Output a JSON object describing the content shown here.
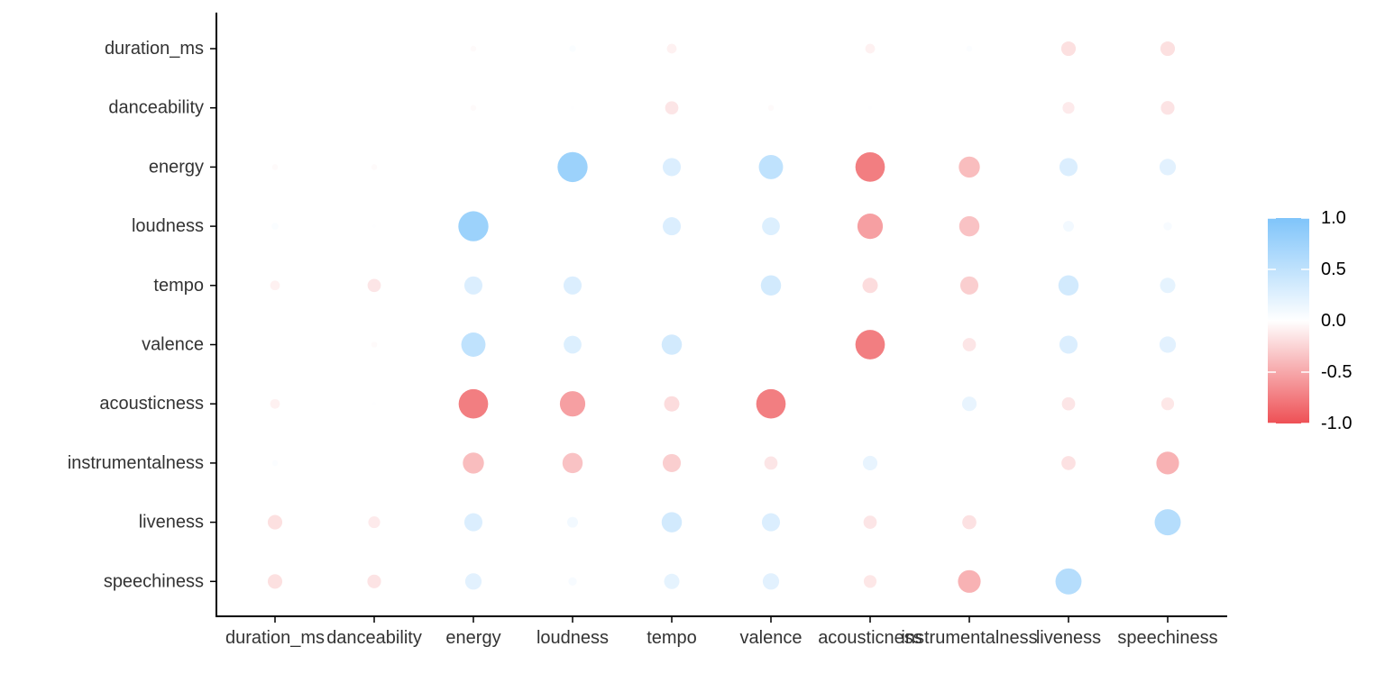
{
  "chart_data": {
    "type": "correlation-dot-matrix",
    "x_categories": [
      "duration_ms",
      "danceability",
      "energy",
      "loudness",
      "tempo",
      "valence",
      "acousticness",
      "instrumentalness",
      "liveness",
      "speechiness"
    ],
    "y_categories": [
      "duration_ms",
      "danceability",
      "energy",
      "loudness",
      "tempo",
      "valence",
      "acousticness",
      "instrumentalness",
      "liveness",
      "speechiness"
    ],
    "values": [
      [
        null,
        0.0,
        -0.03,
        0.04,
        -0.08,
        0.0,
        -0.08,
        0.03,
        -0.18,
        -0.18
      ],
      [
        0.0,
        null,
        -0.03,
        0.01,
        -0.15,
        -0.03,
        0.01,
        0.0,
        -0.12,
        -0.16
      ],
      [
        -0.03,
        -0.03,
        null,
        0.77,
        0.28,
        0.5,
        -0.74,
        -0.38,
        0.28,
        0.23
      ],
      [
        0.04,
        0.01,
        0.77,
        null,
        0.28,
        0.27,
        -0.55,
        -0.35,
        0.1,
        0.06
      ],
      [
        -0.08,
        -0.15,
        0.28,
        0.28,
        null,
        0.35,
        -0.2,
        -0.28,
        0.35,
        0.2
      ],
      [
        0.0,
        -0.03,
        0.5,
        0.27,
        0.35,
        null,
        -0.74,
        -0.15,
        0.28,
        0.23
      ],
      [
        -0.08,
        0.01,
        -0.74,
        -0.55,
        -0.2,
        -0.74,
        null,
        0.18,
        -0.15,
        -0.14
      ],
      [
        0.03,
        0.0,
        -0.38,
        -0.35,
        -0.28,
        -0.15,
        0.18,
        null,
        -0.17,
        -0.44
      ],
      [
        -0.18,
        -0.12,
        0.28,
        0.1,
        0.35,
        0.28,
        -0.15,
        -0.17,
        null,
        0.58
      ],
      [
        -0.18,
        -0.16,
        0.23,
        0.06,
        0.2,
        0.23,
        -0.14,
        -0.44,
        0.58,
        null
      ]
    ],
    "color_scale": {
      "min": -1.0,
      "max": 1.0,
      "low_color": "#ee5055",
      "mid_color": "#ffffff",
      "high_color": "#7fc4fa",
      "ticks": [
        "1.0",
        "0.5",
        "0.0",
        "-0.5",
        "-1.0"
      ]
    },
    "grid": false,
    "legend_position": "right"
  }
}
